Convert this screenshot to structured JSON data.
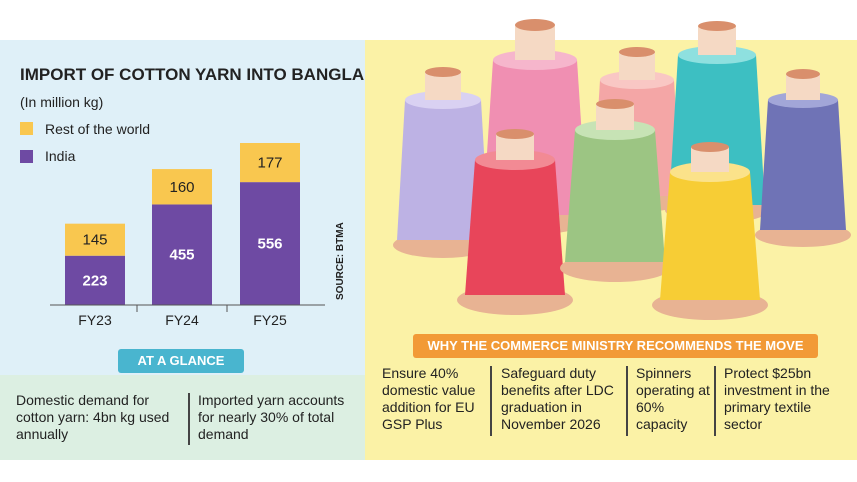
{
  "chart_data": {
    "type": "bar",
    "stacked": true,
    "title": "IMPORT OF COTTON YARN INTO BANGLADESH",
    "subtitle": "(In million kg)",
    "categories": [
      "FY23",
      "FY24",
      "FY25"
    ],
    "series": [
      {
        "name": "India",
        "values": [
          223,
          455,
          556
        ],
        "color": "#6e4aa3"
      },
      {
        "name": "Rest of the world",
        "values": [
          145,
          160,
          177
        ],
        "color": "#f9c74f"
      }
    ],
    "legend": [
      "Rest of the world",
      "India"
    ],
    "source": "SOURCE: BTMA",
    "ylim": [
      0,
      733
    ]
  },
  "glance": {
    "title": "AT A GLANCE",
    "items": [
      "Domestic demand for cotton yarn: 4bn kg used annually",
      "Imported yarn accounts for nearly 30% of total demand"
    ]
  },
  "recommend": {
    "title": "WHY THE COMMERCE MINISTRY RECOMMENDS THE MOVE",
    "items": [
      "Ensure 40% domestic value addition for EU GSP Plus",
      "Safeguard duty benefits after LDC graduation in November 2026",
      "Spinners operating at 60% capacity",
      "Protect $25bn investment in the primary textile sector"
    ]
  },
  "colors": {
    "india": "#6e4aa3",
    "rest": "#f9c74f",
    "teal": "#49b5cf",
    "orange": "#f29a36"
  }
}
